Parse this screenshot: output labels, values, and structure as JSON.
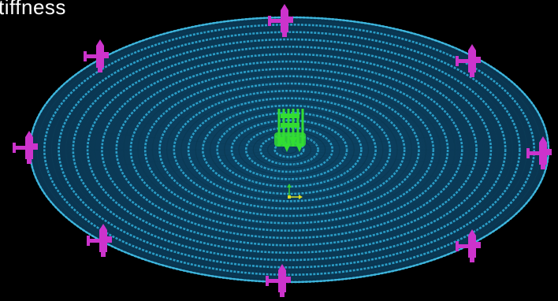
{
  "slide": {
    "title": "tiffness"
  },
  "colors": {
    "background": "#000000",
    "mesh": "#2a9ec8",
    "mesh_dark": "#0b3a55",
    "constraint": "#cc33cc",
    "load": "#33dd33",
    "axis_x": "#dddd22",
    "axis_y": "#33cc33"
  },
  "model": {
    "icons": {
      "boundary_constraint": "fixed-support-icon",
      "applied_load": "force-arrow-icon",
      "coordinate_triad": "axis-triad-icon"
    },
    "mesh_rings": 18,
    "boundary_constraint_count": 8
  }
}
